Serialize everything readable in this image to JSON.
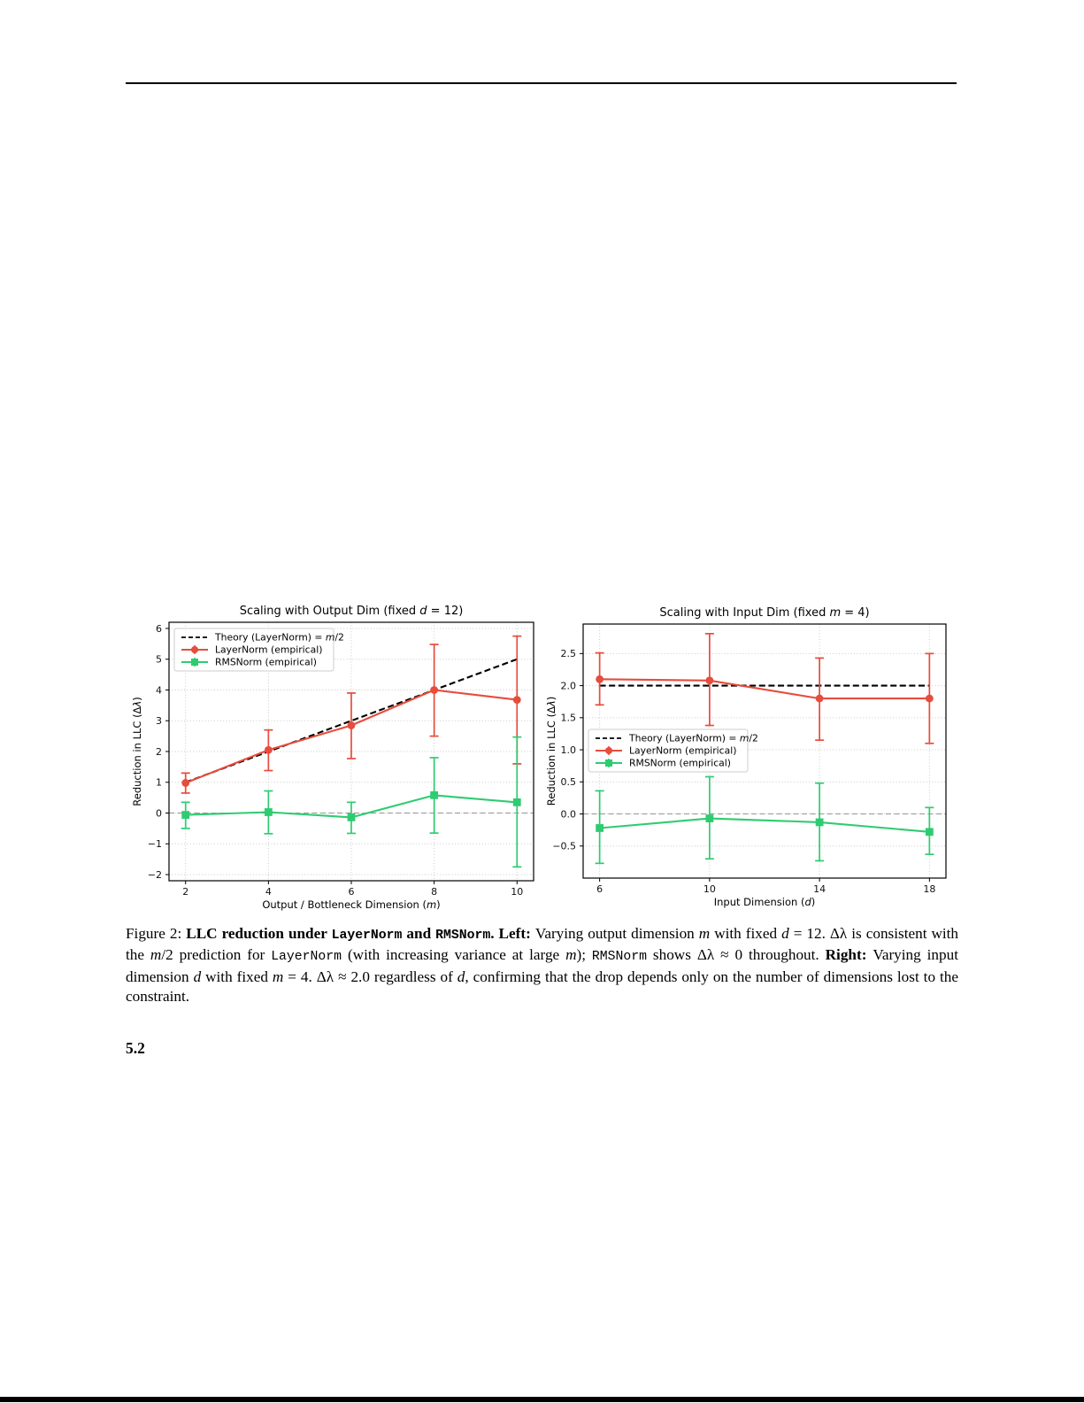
{
  "page": {
    "section_heading": "5.2"
  },
  "caption": {
    "segments": [
      {
        "t": "Figure 2: "
      },
      {
        "t": "LLC reduction under ",
        "s": "bold"
      },
      {
        "t": "LayerNorm",
        "s": "bold-mono"
      },
      {
        "t": " and ",
        "s": "bold"
      },
      {
        "t": "RMSNorm",
        "s": "bold-mono"
      },
      {
        "t": ". ",
        "s": "bold"
      },
      {
        "t": "Left: ",
        "s": "bold"
      },
      {
        "t": "Varying output dimension "
      },
      {
        "t": "m",
        "s": "italic"
      },
      {
        "t": " with fixed "
      },
      {
        "t": "d",
        "s": "italic"
      },
      {
        "t": " = 12. Δλ is consistent with the "
      },
      {
        "t": "m",
        "s": "italic"
      },
      {
        "t": "/2 prediction for "
      },
      {
        "t": "LayerNorm",
        "s": "mono"
      },
      {
        "t": " (with increasing variance at large "
      },
      {
        "t": "m",
        "s": "italic"
      },
      {
        "t": "); "
      },
      {
        "t": "RMSNorm",
        "s": "mono"
      },
      {
        "t": " shows Δλ ≈ 0 throughout. "
      },
      {
        "t": "Right: ",
        "s": "bold"
      },
      {
        "t": "Varying input dimension "
      },
      {
        "t": "d",
        "s": "italic"
      },
      {
        "t": " with fixed "
      },
      {
        "t": "m",
        "s": "italic"
      },
      {
        "t": " = 4. Δλ ≈ 2.0 regardless of "
      },
      {
        "t": "d",
        "s": "italic"
      },
      {
        "t": ", confirming that the drop depends only on the number of dimensions lost to the constraint."
      }
    ]
  },
  "chart_data": [
    {
      "type": "line",
      "title_segments": [
        {
          "t": "Scaling with Output Dim (fixed "
        },
        {
          "t": "d",
          "i": true
        },
        {
          "t": " = 12)"
        }
      ],
      "xlabel_segments": [
        {
          "t": "Output / Bottleneck Dimension ("
        },
        {
          "t": "m",
          "i": true
        },
        {
          "t": ")"
        }
      ],
      "ylabel_segments": [
        {
          "t": "Reduction in LLC (Δ"
        },
        {
          "t": "λ",
          "i": true
        },
        {
          "t": ")"
        }
      ],
      "xlim": [
        1.6,
        10.4
      ],
      "ylim": [
        -2.2,
        6.2
      ],
      "xticks": {
        "values": [
          2,
          4,
          6,
          8,
          10
        ],
        "labels": [
          "2",
          "4",
          "6",
          "8",
          "10"
        ]
      },
      "yticks": {
        "values": [
          -2,
          -1,
          0,
          1,
          2,
          3,
          4,
          5,
          6
        ],
        "labels": [
          "−2",
          "−1",
          "0",
          "1",
          "2",
          "3",
          "4",
          "5",
          "6"
        ]
      },
      "grid": true,
      "zero_line": true,
      "legend_position": "upper left",
      "series": [
        {
          "name": "theory-layernorm",
          "label_segments": [
            {
              "t": "Theory (LayerNorm) = "
            },
            {
              "t": "m",
              "i": true
            },
            {
              "t": "/2"
            }
          ],
          "style": "dashed",
          "color": "#000000",
          "x": [
            2,
            10
          ],
          "y": [
            1,
            5
          ]
        },
        {
          "name": "layernorm-empirical",
          "label_segments": [
            {
              "t": "LayerNorm (empirical)"
            }
          ],
          "marker": "circle",
          "color": "#e74c3c",
          "x": [
            2,
            4,
            6,
            8,
            10
          ],
          "y": [
            0.98,
            2.05,
            2.85,
            4.0,
            3.68
          ],
          "err_low": [
            0.65,
            1.38,
            1.77,
            2.5,
            1.6
          ],
          "err_high": [
            1.3,
            2.7,
            3.9,
            5.48,
            5.75
          ]
        },
        {
          "name": "rmsnorm-empirical",
          "label_segments": [
            {
              "t": "RMSNorm (empirical)"
            }
          ],
          "marker": "square",
          "color": "#2ecc71",
          "x": [
            2,
            4,
            6,
            8,
            10
          ],
          "y": [
            -0.06,
            0.03,
            -0.14,
            0.58,
            0.35
          ],
          "err_low": [
            -0.5,
            -0.67,
            -0.66,
            -0.65,
            -1.75
          ],
          "err_high": [
            0.35,
            0.72,
            0.35,
            1.8,
            2.47
          ]
        }
      ]
    },
    {
      "type": "line",
      "title_segments": [
        {
          "t": "Scaling with Input Dim (fixed "
        },
        {
          "t": "m",
          "i": true
        },
        {
          "t": " = 4)"
        }
      ],
      "xlabel_segments": [
        {
          "t": "Input Dimension ("
        },
        {
          "t": "d",
          "i": true
        },
        {
          "t": ")"
        }
      ],
      "ylabel_segments": [
        {
          "t": "Reduction in LLC (Δ"
        },
        {
          "t": "λ",
          "i": true
        },
        {
          "t": ")"
        }
      ],
      "xlim": [
        5.4,
        18.6
      ],
      "ylim": [
        -1.0,
        2.96
      ],
      "xticks": {
        "values": [
          6,
          10,
          14,
          18
        ],
        "labels": [
          "6",
          "10",
          "14",
          "18"
        ]
      },
      "yticks": {
        "values": [
          -0.5,
          0,
          0.5,
          1,
          1.5,
          2,
          2.5
        ],
        "labels": [
          "−0.5",
          "0.0",
          "0.5",
          "1.0",
          "1.5",
          "2.0",
          "2.5"
        ]
      },
      "grid": true,
      "zero_line": true,
      "legend_position": "center left",
      "series": [
        {
          "name": "theory-layernorm",
          "label_segments": [
            {
              "t": "Theory (LayerNorm) = "
            },
            {
              "t": "m",
              "i": true
            },
            {
              "t": "/2"
            }
          ],
          "style": "dashed",
          "color": "#000000",
          "x": [
            6,
            18
          ],
          "y": [
            2,
            2
          ]
        },
        {
          "name": "layernorm-empirical",
          "label_segments": [
            {
              "t": "LayerNorm (empirical)"
            }
          ],
          "marker": "circle",
          "color": "#e74c3c",
          "x": [
            6,
            10,
            14,
            18
          ],
          "y": [
            2.1,
            2.08,
            1.8,
            1.8
          ],
          "err_low": [
            1.7,
            1.38,
            1.15,
            1.1
          ],
          "err_high": [
            2.51,
            2.81,
            2.43,
            2.5
          ]
        },
        {
          "name": "rmsnorm-empirical",
          "label_segments": [
            {
              "t": "RMSNorm (empirical)"
            }
          ],
          "marker": "square",
          "color": "#2ecc71",
          "x": [
            6,
            10,
            14,
            18
          ],
          "y": [
            -0.22,
            -0.07,
            -0.13,
            -0.28
          ],
          "err_low": [
            -0.77,
            -0.7,
            -0.73,
            -0.63
          ],
          "err_high": [
            0.36,
            0.58,
            0.48,
            0.1
          ]
        }
      ]
    }
  ]
}
